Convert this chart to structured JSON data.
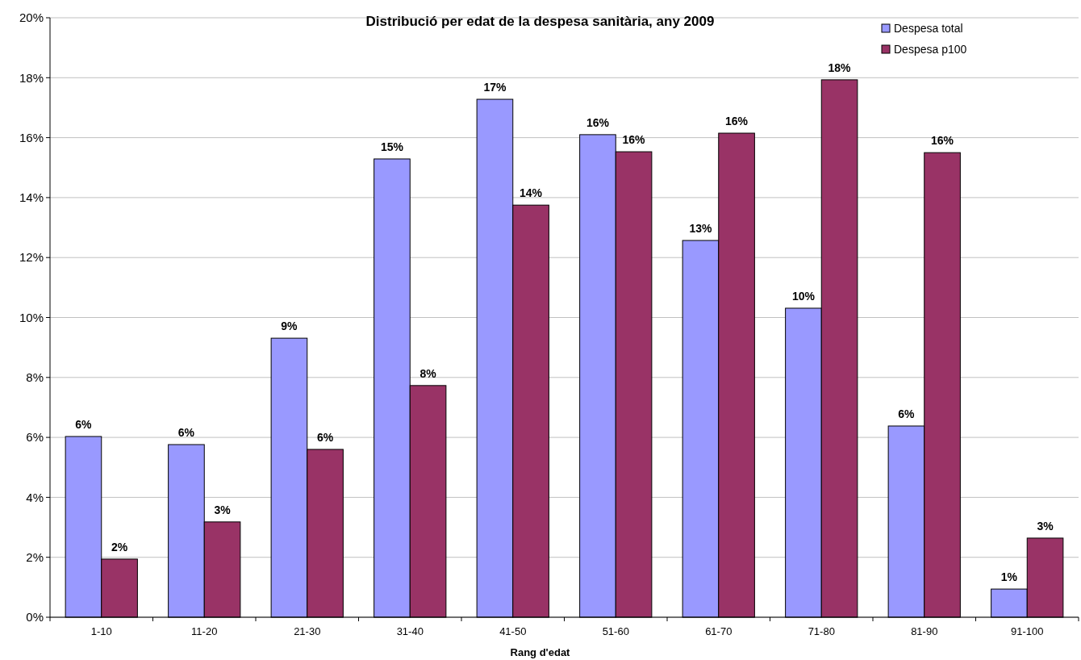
{
  "chart_data": {
    "type": "bar",
    "title": "Distribució per edat de la despesa sanitària, any 2009",
    "xlabel": "Rang d'edat",
    "categories": [
      "1-10",
      "11-20",
      "21-30",
      "31-40",
      "41-50",
      "51-60",
      "61-70",
      "71-80",
      "81-90",
      "91-100"
    ],
    "series": [
      {
        "name": "Despesa total",
        "color": "#9999ff",
        "values": [
          6.03,
          5.76,
          9.31,
          15.29,
          17.28,
          16.1,
          12.57,
          10.31,
          6.38,
          0.94
        ],
        "value_labels": [
          "6%",
          "6%",
          "9%",
          "15%",
          "17%",
          "16%",
          "13%",
          "10%",
          "6%",
          "1%"
        ]
      },
      {
        "name": "Despesa p100",
        "color": "#993366",
        "values": [
          1.94,
          3.18,
          5.6,
          7.73,
          13.75,
          15.53,
          16.15,
          17.93,
          15.5,
          2.64
        ],
        "value_labels": [
          "2%",
          "3%",
          "6%",
          "8%",
          "14%",
          "16%",
          "16%",
          "18%",
          "16%",
          "3%"
        ]
      }
    ],
    "ylim": [
      0,
      20
    ],
    "yticks": [
      {
        "value": 0,
        "label": "0%"
      },
      {
        "value": 2,
        "label": "2%"
      },
      {
        "value": 4,
        "label": "4%"
      },
      {
        "value": 6,
        "label": "6%"
      },
      {
        "value": 8,
        "label": "8%"
      },
      {
        "value": 10,
        "label": "10%"
      },
      {
        "value": 12,
        "label": "12%"
      },
      {
        "value": 14,
        "label": "14%"
      },
      {
        "value": 16,
        "label": "16%"
      },
      {
        "value": 18,
        "label": "18%"
      },
      {
        "value": 20,
        "label": "20%"
      }
    ],
    "grid": "y",
    "legend": "top right"
  }
}
